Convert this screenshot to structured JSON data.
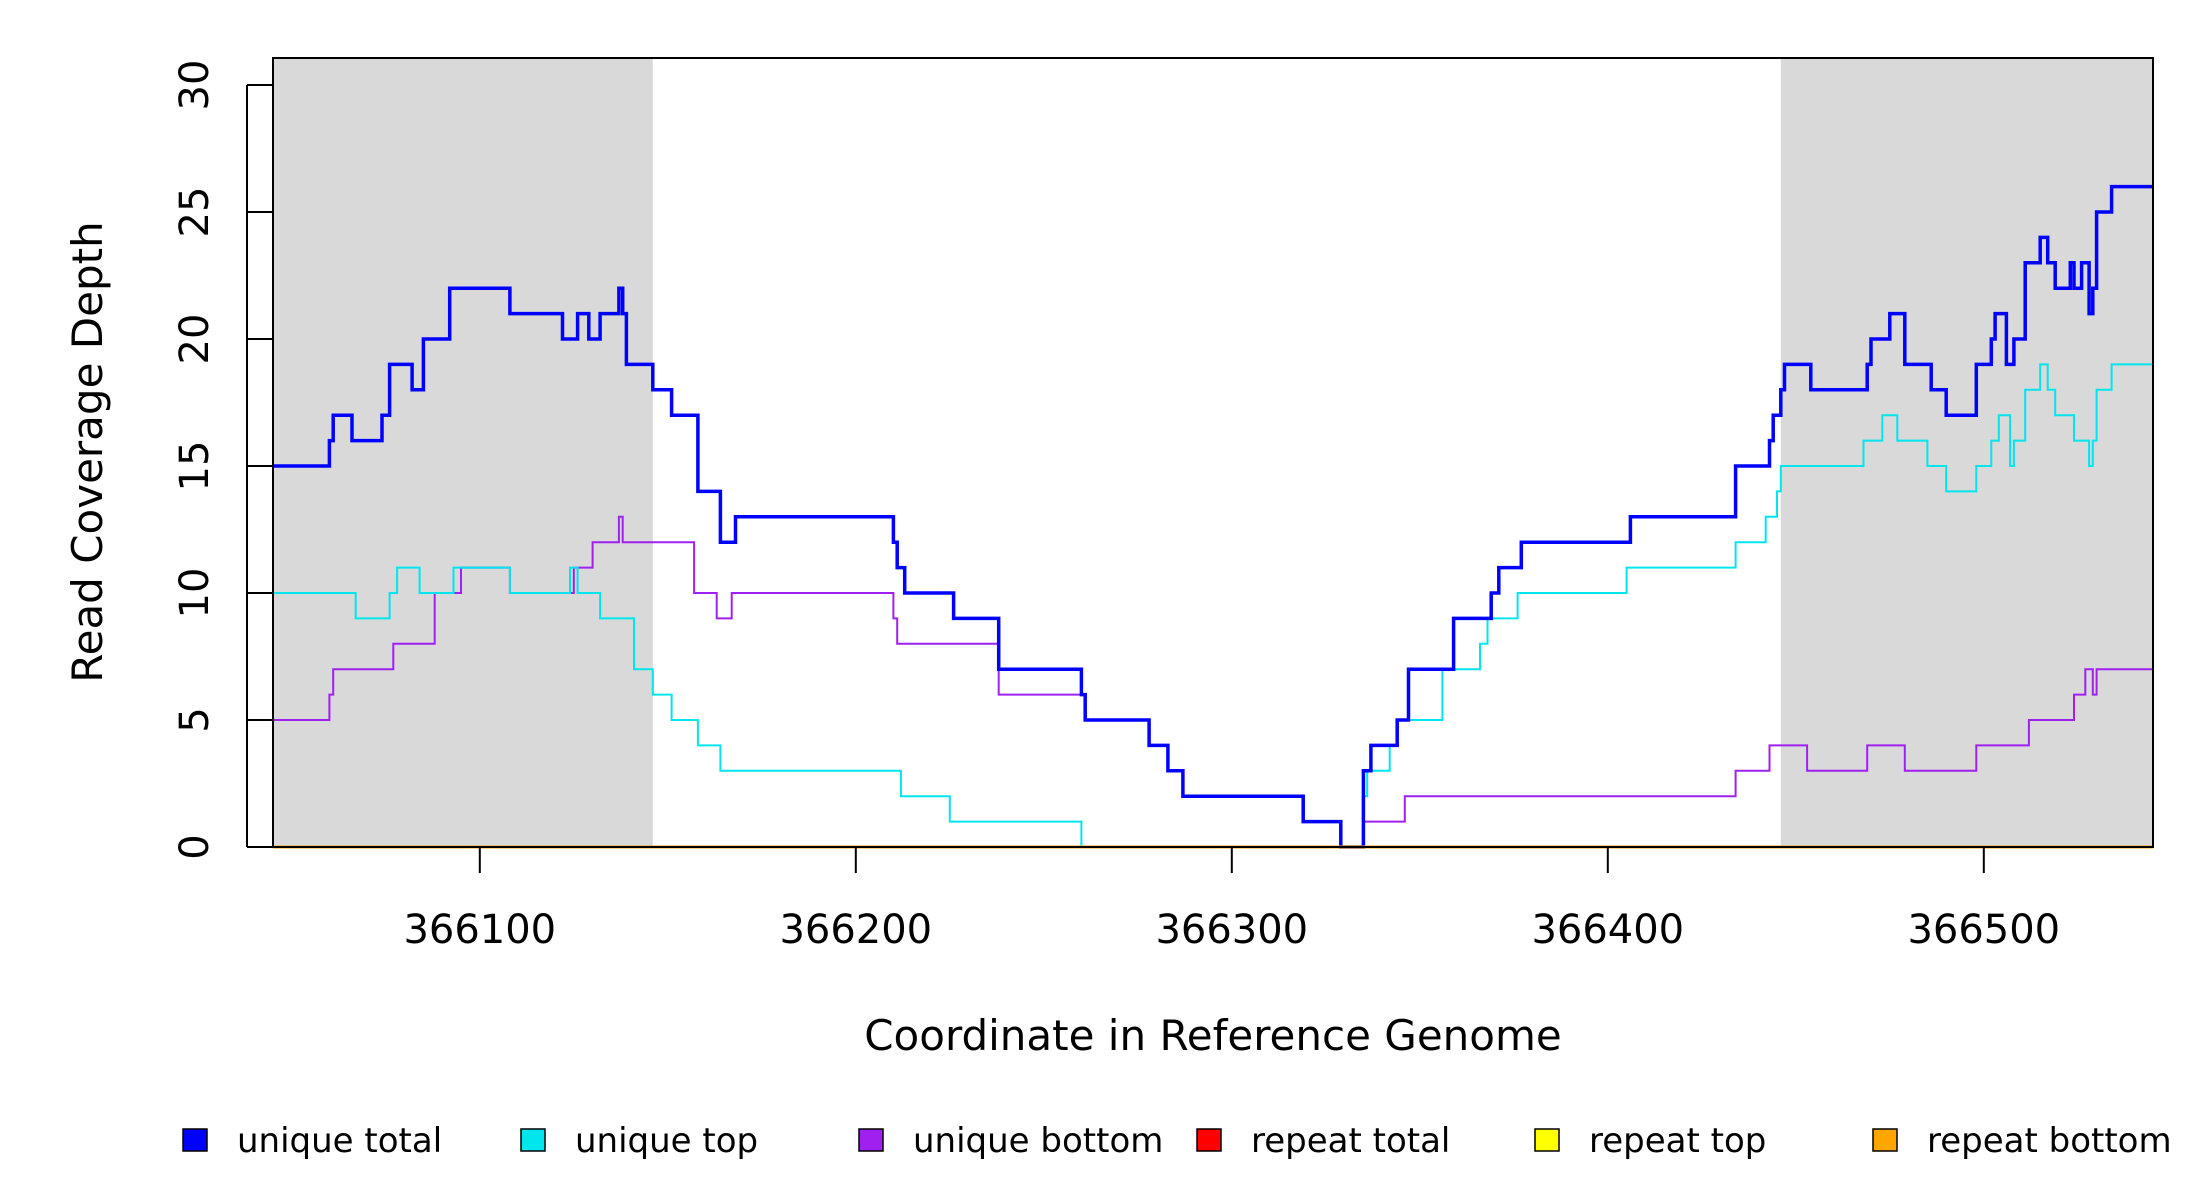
{
  "chart_data": {
    "type": "line",
    "xlabel": "Coordinate in Reference Genome",
    "ylabel": "Read Coverage Depth",
    "xlim": [
      366045,
      366545
    ],
    "ylim": [
      0,
      30
    ],
    "xticks": [
      366100,
      366200,
      366300,
      366400,
      366500
    ],
    "xtick_labels": [
      "366100",
      "366200",
      "366300",
      "366400",
      "366500"
    ],
    "yticks": [
      0,
      5,
      10,
      15,
      20,
      25,
      30
    ],
    "ytick_labels": [
      "0",
      "5",
      "10",
      "15",
      "20",
      "25",
      "30"
    ],
    "shaded_regions": [
      [
        366045,
        366146
      ],
      [
        366446,
        366545
      ]
    ],
    "shade_color": "#d9d9d9",
    "grid": false,
    "legend_position": "bottom",
    "series": [
      {
        "name": "unique total",
        "color": "#0000ff",
        "points": [
          [
            366045,
            15
          ],
          [
            366060,
            16
          ],
          [
            366061,
            17
          ],
          [
            366066,
            16
          ],
          [
            366074,
            17
          ],
          [
            366076,
            19
          ],
          [
            366082,
            18
          ],
          [
            366085,
            20
          ],
          [
            366092,
            22
          ],
          [
            366108,
            21
          ],
          [
            366122,
            20
          ],
          [
            366126,
            21
          ],
          [
            366129,
            20
          ],
          [
            366132,
            21
          ],
          [
            366137,
            22
          ],
          [
            366138,
            21
          ],
          [
            366139,
            19
          ],
          [
            366146,
            18
          ],
          [
            366151,
            17
          ],
          [
            366158,
            14
          ],
          [
            366164,
            12
          ],
          [
            366168,
            13
          ],
          [
            366210,
            12
          ],
          [
            366211,
            11
          ],
          [
            366213,
            10
          ],
          [
            366226,
            9
          ],
          [
            366238,
            7
          ],
          [
            366260,
            6
          ],
          [
            366261,
            5
          ],
          [
            366278,
            4
          ],
          [
            366283,
            3
          ],
          [
            366287,
            2
          ],
          [
            366319,
            1
          ],
          [
            366329,
            0
          ],
          [
            366335,
            3
          ],
          [
            366337,
            4
          ],
          [
            366344,
            5
          ],
          [
            366347,
            7
          ],
          [
            366359,
            9
          ],
          [
            366369,
            10
          ],
          [
            366371,
            11
          ],
          [
            366377,
            12
          ],
          [
            366406,
            13
          ],
          [
            366434,
            15
          ],
          [
            366443,
            16
          ],
          [
            366444,
            17
          ],
          [
            366446,
            18
          ],
          [
            366447,
            19
          ],
          [
            366454,
            18
          ],
          [
            366469,
            19
          ],
          [
            366470,
            20
          ],
          [
            366475,
            21
          ],
          [
            366479,
            19
          ],
          [
            366486,
            18
          ],
          [
            366490,
            17
          ],
          [
            366498,
            19
          ],
          [
            366502,
            20
          ],
          [
            366503,
            21
          ],
          [
            366506,
            19
          ],
          [
            366508,
            20
          ],
          [
            366511,
            23
          ],
          [
            366515,
            24
          ],
          [
            366517,
            23
          ],
          [
            366519,
            22
          ],
          [
            366523,
            23
          ],
          [
            366524,
            22
          ],
          [
            366526,
            23
          ],
          [
            366528,
            21
          ],
          [
            366529,
            22
          ],
          [
            366530,
            25
          ],
          [
            366534,
            26
          ],
          [
            366545,
            26
          ]
        ]
      },
      {
        "name": "unique top",
        "color": "#00e5ee",
        "points": [
          [
            366045,
            10
          ],
          [
            366067,
            9
          ],
          [
            366076,
            10
          ],
          [
            366078,
            11
          ],
          [
            366084,
            10
          ],
          [
            366093,
            11
          ],
          [
            366108,
            10
          ],
          [
            366124,
            11
          ],
          [
            366126,
            10
          ],
          [
            366132,
            9
          ],
          [
            366141,
            7
          ],
          [
            366146,
            6
          ],
          [
            366151,
            5
          ],
          [
            366158,
            4
          ],
          [
            366164,
            3
          ],
          [
            366212,
            2
          ],
          [
            366225,
            1
          ],
          [
            366260,
            0
          ],
          [
            366335,
            2
          ],
          [
            366336,
            3
          ],
          [
            366342,
            4
          ],
          [
            366344,
            5
          ],
          [
            366356,
            7
          ],
          [
            366366,
            8
          ],
          [
            366368,
            9
          ],
          [
            366376,
            10
          ],
          [
            366405,
            11
          ],
          [
            366434,
            12
          ],
          [
            366442,
            13
          ],
          [
            366445,
            14
          ],
          [
            366446,
            15
          ],
          [
            366468,
            16
          ],
          [
            366473,
            17
          ],
          [
            366477,
            16
          ],
          [
            366485,
            15
          ],
          [
            366490,
            14
          ],
          [
            366498,
            15
          ],
          [
            366502,
            16
          ],
          [
            366504,
            17
          ],
          [
            366507,
            15
          ],
          [
            366508,
            16
          ],
          [
            366511,
            18
          ],
          [
            366515,
            19
          ],
          [
            366517,
            18
          ],
          [
            366519,
            17
          ],
          [
            366524,
            16
          ],
          [
            366528,
            15
          ],
          [
            366529,
            16
          ],
          [
            366530,
            18
          ],
          [
            366534,
            19
          ],
          [
            366545,
            19
          ]
        ]
      },
      {
        "name": "unique bottom",
        "color": "#a020f0",
        "points": [
          [
            366045,
            5
          ],
          [
            366060,
            6
          ],
          [
            366061,
            7
          ],
          [
            366077,
            8
          ],
          [
            366088,
            10
          ],
          [
            366095,
            11
          ],
          [
            366108,
            10
          ],
          [
            366125,
            11
          ],
          [
            366130,
            12
          ],
          [
            366137,
            13
          ],
          [
            366138,
            12
          ],
          [
            366157,
            10
          ],
          [
            366163,
            9
          ],
          [
            366167,
            10
          ],
          [
            366210,
            9
          ],
          [
            366211,
            8
          ],
          [
            366238,
            6
          ],
          [
            366261,
            5
          ],
          [
            366278,
            4
          ],
          [
            366283,
            3
          ],
          [
            366287,
            2
          ],
          [
            366319,
            1
          ],
          [
            366329,
            0
          ],
          [
            366335,
            1
          ],
          [
            366346,
            2
          ],
          [
            366434,
            3
          ],
          [
            366443,
            4
          ],
          [
            366453,
            3
          ],
          [
            366469,
            4
          ],
          [
            366479,
            3
          ],
          [
            366498,
            4
          ],
          [
            366512,
            5
          ],
          [
            366524,
            6
          ],
          [
            366527,
            7
          ],
          [
            366529,
            6
          ],
          [
            366530,
            7
          ],
          [
            366545,
            7
          ]
        ]
      },
      {
        "name": "repeat total",
        "color": "#ff0000",
        "points": [
          [
            366045,
            0
          ],
          [
            366545,
            0
          ]
        ]
      },
      {
        "name": "repeat top",
        "color": "#ffff00",
        "points": [
          [
            366045,
            0
          ],
          [
            366545,
            0
          ]
        ]
      },
      {
        "name": "repeat bottom",
        "color": "#ffa500",
        "points": [
          [
            366045,
            0
          ],
          [
            366545,
            0
          ]
        ]
      }
    ]
  }
}
